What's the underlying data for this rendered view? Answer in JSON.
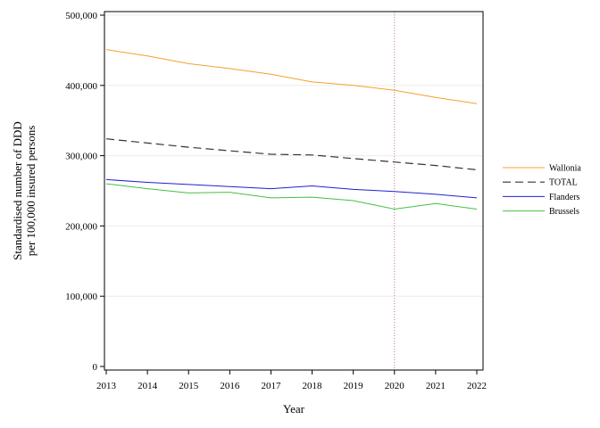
{
  "chart_data": {
    "type": "line",
    "xlabel": "Year",
    "ylabel": [
      "Standardised number of DDD",
      "per 100,000 insured persons"
    ],
    "x": [
      2013,
      2014,
      2015,
      2016,
      2017,
      2018,
      2019,
      2020,
      2021,
      2022
    ],
    "x_tick_labels": [
      "2013",
      "2014",
      "2015",
      "2016",
      "2017",
      "2018",
      "2019",
      "2020",
      "2021",
      "2022"
    ],
    "xlim": [
      2013,
      2022.1
    ],
    "ylim": [
      0,
      505000
    ],
    "y_ticks": [
      0,
      100000,
      200000,
      300000,
      400000,
      500000
    ],
    "y_tick_labels": [
      "0",
      "100,000",
      "200,000",
      "300,000",
      "400,000",
      "500,000"
    ],
    "reference_line_x": 2020,
    "grid": "horizontal",
    "legend_position": "right",
    "series": [
      {
        "name": "Wallonia",
        "color": "#f5a030",
        "dash": "solid",
        "values": [
          451000,
          442000,
          431000,
          424000,
          416000,
          405000,
          400000,
          393000,
          383000,
          374000
        ]
      },
      {
        "name": "TOTAL",
        "color": "#333333",
        "dash": "dashed",
        "values": [
          324000,
          318000,
          312000,
          307000,
          302000,
          301000,
          296000,
          291000,
          286000,
          280000
        ]
      },
      {
        "name": "Flanders",
        "color": "#2020d0",
        "dash": "solid",
        "values": [
          266000,
          262000,
          259000,
          256000,
          253000,
          257000,
          252000,
          249000,
          245000,
          240000
        ]
      },
      {
        "name": "Brussels",
        "color": "#44c044",
        "dash": "solid",
        "values": [
          260000,
          253000,
          247000,
          248000,
          240000,
          241000,
          236000,
          224000,
          232000,
          224000
        ]
      }
    ]
  }
}
